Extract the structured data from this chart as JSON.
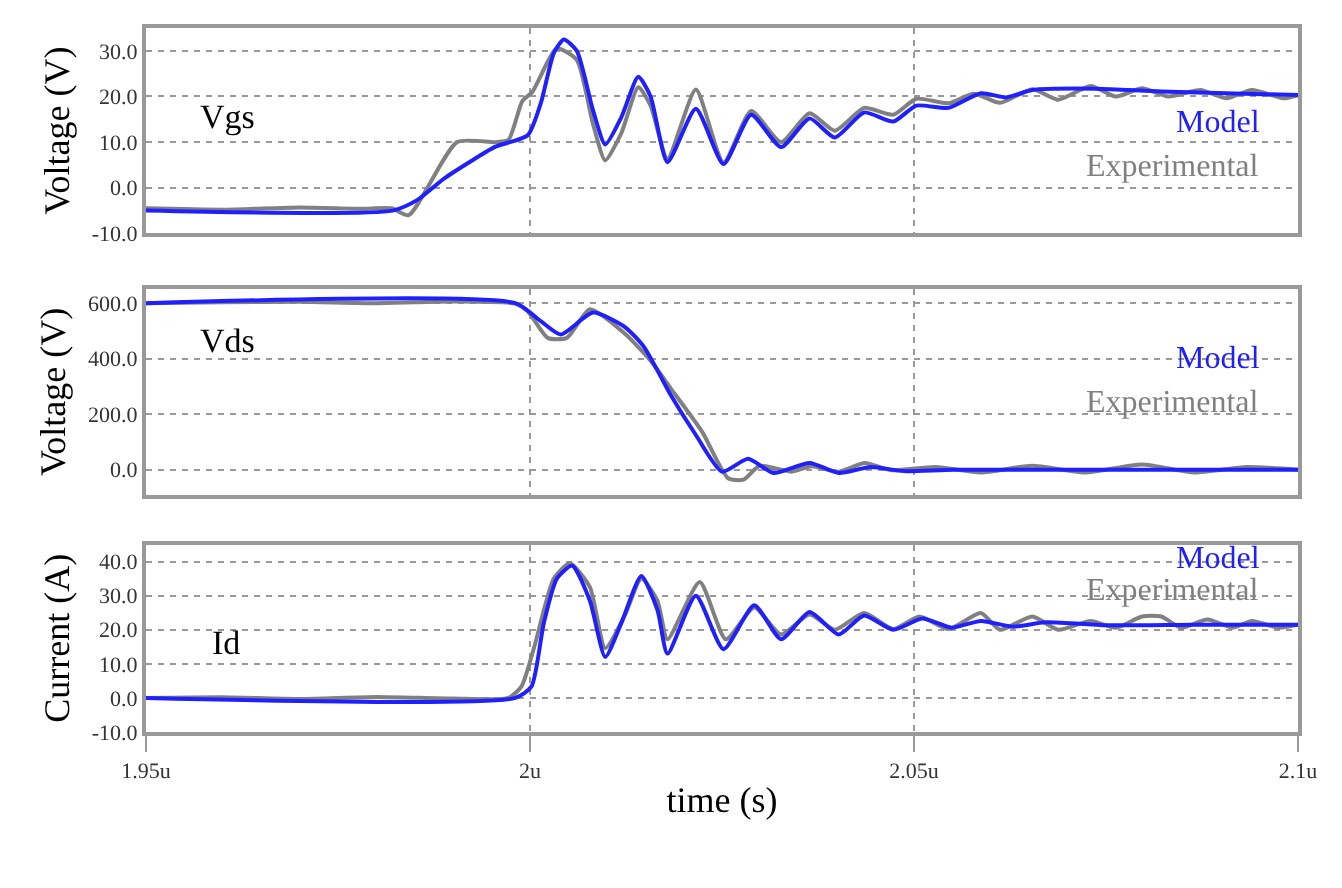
{
  "chart_data": [
    {
      "type": "line",
      "ylabel": "Voltage (V)",
      "annotations": [
        "Vgs"
      ],
      "xlim": [
        1.95,
        2.1
      ],
      "xticks": [
        {
          "value": 1.95,
          "label": null
        },
        {
          "value": 2.0,
          "label": null
        },
        {
          "value": 2.05,
          "label": null
        },
        {
          "value": 2.1,
          "label": null
        }
      ],
      "ylim": [
        -10,
        35
      ],
      "yticks": [
        {
          "value": -10,
          "label": "-10.0"
        },
        {
          "value": 0,
          "label": "0.0"
        },
        {
          "value": 10,
          "label": "10.0"
        },
        {
          "value": 20,
          "label": "20.0"
        },
        {
          "value": 30,
          "label": "30.0"
        }
      ],
      "grid": true,
      "tick_labels": "y",
      "series": [
        {
          "name": "Experimental",
          "color": "#808080",
          "x": [
            1.95,
            1.96,
            1.97,
            1.978,
            1.982,
            1.9842,
            1.9905,
            1.9955,
            1.9972,
            1.999,
            2.0003,
            2.0035,
            2.0061,
            2.0082,
            2.0098,
            2.0119,
            2.0141,
            2.0157,
            2.0179,
            2.0216,
            2.0252,
            2.0288,
            2.0327,
            2.0364,
            2.0397,
            2.0435,
            2.0473,
            2.0503,
            2.0545,
            2.0578,
            2.0612,
            2.0654,
            2.0688,
            2.073,
            2.0763,
            2.0797,
            2.0831,
            2.0873,
            2.0907,
            2.094,
            2.0982,
            2.1
          ],
          "values": [
            -4.5,
            -4.8,
            -4.3,
            -4.6,
            -4.5,
            -6,
            10,
            10,
            10.5,
            19,
            21,
            30.5,
            28,
            14,
            6,
            12,
            22,
            18,
            6.4,
            21.5,
            5.5,
            16.8,
            10,
            16.3,
            12.5,
            17.5,
            16,
            19.5,
            18.5,
            20.6,
            18.6,
            21.6,
            19.3,
            22.3,
            20,
            21.8,
            20,
            21.4,
            19.6,
            21.4,
            19.6,
            20.3
          ]
        },
        {
          "name": "Model",
          "color": "#2020ff",
          "x": [
            1.95,
            1.9821,
            1.9854,
            1.9888,
            1.9922,
            1.9955,
            1.9997,
            2.0014,
            2.0031,
            2.0044,
            2.0061,
            2.0082,
            2.0098,
            2.0119,
            2.0141,
            2.0157,
            2.0179,
            2.0216,
            2.0252,
            2.0288,
            2.0327,
            2.0364,
            2.0397,
            2.0435,
            2.0473,
            2.0503,
            2.0545,
            2.0587,
            2.062,
            2.0654,
            2.0738,
            2.0822,
            2.1
          ],
          "values": [
            -5,
            -5,
            -2.6,
            2,
            5.7,
            9,
            11.5,
            18.5,
            29.5,
            32.5,
            30,
            17,
            9.5,
            15.5,
            24.3,
            20,
            5.6,
            17.3,
            5.2,
            16,
            8.9,
            15.2,
            11,
            16.5,
            14.5,
            18,
            17.5,
            20.7,
            19.8,
            21.4,
            21.7,
            21.1,
            20.3
          ]
        }
      ]
    },
    {
      "type": "line",
      "ylabel": "Voltage (V)",
      "annotations": [
        "Vds"
      ],
      "xlim": [
        1.95,
        2.1
      ],
      "xticks": [
        {
          "value": 1.95,
          "label": null
        },
        {
          "value": 2.0,
          "label": null
        },
        {
          "value": 2.05,
          "label": null
        },
        {
          "value": 2.1,
          "label": null
        }
      ],
      "ylim": [
        -90,
        650
      ],
      "yticks": [
        {
          "value": 0,
          "label": "0.0"
        },
        {
          "value": 200,
          "label": "200.0"
        },
        {
          "value": 400,
          "label": "400.0"
        },
        {
          "value": 600,
          "label": "600.0"
        }
      ],
      "grid": true,
      "tick_labels": "y",
      "series": [
        {
          "name": "Experimental",
          "color": "#808080",
          "x": [
            1.95,
            1.96,
            1.97,
            1.98,
            1.99,
            1.9981,
            1.9997,
            2.0023,
            2.0048,
            2.0078,
            2.0124,
            2.0157,
            2.0183,
            2.0224,
            2.0258,
            2.0278,
            2.0299,
            2.0341,
            2.0366,
            2.0402,
            2.0436,
            2.047,
            2.0528,
            2.0587,
            2.0654,
            2.0722,
            2.0797,
            2.0865,
            2.0933,
            2.1
          ],
          "values": [
            600,
            603,
            605,
            600,
            606,
            598,
            571,
            475,
            475,
            578,
            489,
            393,
            294,
            137,
            -31,
            -36,
            14,
            -7,
            12,
            -7,
            24,
            -2,
            10,
            -10,
            14,
            -10,
            19,
            -10,
            10,
            0
          ]
        },
        {
          "name": "Model",
          "color": "#2020ff",
          "x": [
            1.95,
            1.9981,
            2.0014,
            2.004,
            2.0082,
            2.0124,
            2.0149,
            2.0183,
            2.0216,
            2.025,
            2.0284,
            2.0317,
            2.0364,
            2.0402,
            2.0444,
            2.0486,
            2.0553,
            2.1
          ],
          "values": [
            600,
            600,
            535,
            487,
            566,
            513,
            440,
            270,
            125,
            -7,
            39,
            -12,
            24,
            -12,
            10,
            -5,
            0,
            0
          ]
        }
      ]
    },
    {
      "type": "line",
      "ylabel": "Current (A)",
      "xlabel": "time (s)",
      "annotations": [
        "Id"
      ],
      "xlim": [
        1.95,
        2.1
      ],
      "xticks": [
        {
          "value": 1.95,
          "label": "1.95u"
        },
        {
          "value": 2.0,
          "label": "2u"
        },
        {
          "value": 2.05,
          "label": "2.05u"
        },
        {
          "value": 2.1,
          "label": "2.1u"
        }
      ],
      "ylim": [
        -10,
        45
      ],
      "yticks": [
        {
          "value": -10,
          "label": "-10.0"
        },
        {
          "value": 0,
          "label": "0.0"
        },
        {
          "value": 10,
          "label": "10.0"
        },
        {
          "value": 20,
          "label": "20.0"
        },
        {
          "value": 30,
          "label": "30.0"
        },
        {
          "value": 40,
          "label": "40.0"
        }
      ],
      "grid": true,
      "series": [
        {
          "name": "Experimental",
          "color": "#808080",
          "x": [
            1.95,
            1.96,
            1.97,
            1.98,
            1.99,
            1.9972,
            1.9989,
            2.0006,
            2.0031,
            2.0052,
            2.0078,
            2.0098,
            2.0124,
            2.0145,
            2.0166,
            2.0179,
            2.0221,
            2.0255,
            2.0292,
            2.0327,
            2.0364,
            2.0397,
            2.0435,
            2.0473,
            2.0507,
            2.0545,
            2.0587,
            2.0612,
            2.0654,
            2.0688,
            2.073,
            2.0763,
            2.0797,
            2.0822,
            2.0848,
            2.0882,
            2.0915,
            2.094,
            2.0974,
            2.1
          ],
          "values": [
            0,
            0.2,
            -0.3,
            0.3,
            -0.2,
            0,
            3.4,
            15.3,
            35,
            39.5,
            32.5,
            14.6,
            24.5,
            35,
            28.5,
            17.2,
            34,
            17.2,
            26.5,
            18.6,
            24.5,
            20,
            24.9,
            20.2,
            23.9,
            20.2,
            24.9,
            20,
            23.9,
            20,
            22.6,
            20.6,
            23.9,
            23.9,
            20.6,
            23,
            20.6,
            22.6,
            20.6,
            21.5
          ]
        },
        {
          "name": "Model",
          "color": "#2020ff",
          "x": [
            1.95,
            1.9981,
            2.0002,
            2.0018,
            2.0035,
            2.0055,
            2.0078,
            2.0098,
            2.0119,
            2.0145,
            2.0166,
            2.0179,
            2.0216,
            2.0252,
            2.0292,
            2.0327,
            2.0364,
            2.0402,
            2.0435,
            2.0473,
            2.0511,
            2.0549,
            2.0587,
            2.0629,
            2.0671,
            2.0755,
            2.0864,
            2.1
          ],
          "values": [
            0,
            0,
            3.4,
            22,
            35,
            38.8,
            28.5,
            12,
            22,
            35.8,
            25.8,
            13,
            30,
            14.3,
            27.2,
            17.2,
            25.2,
            18.6,
            24.2,
            20,
            23.3,
            20.6,
            22.6,
            20.9,
            22.2,
            21.3,
            21.5,
            21.5
          ]
        }
      ]
    }
  ]
}
